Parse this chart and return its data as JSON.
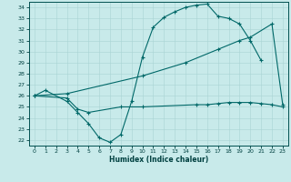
{
  "bg_color": "#c8eaea",
  "line_color": "#006868",
  "grid_color": "#a8d4d4",
  "xlabel": "Humidex (Indice chaleur)",
  "xlim": [
    -0.5,
    23.5
  ],
  "ylim": [
    21.5,
    34.5
  ],
  "xticks": [
    0,
    1,
    2,
    3,
    4,
    5,
    6,
    7,
    8,
    9,
    10,
    11,
    12,
    13,
    14,
    15,
    16,
    17,
    18,
    19,
    20,
    21,
    22,
    23
  ],
  "yticks": [
    22,
    23,
    24,
    25,
    26,
    27,
    28,
    29,
    30,
    31,
    32,
    33,
    34
  ],
  "curve1_x": [
    0,
    1,
    3,
    4,
    5,
    6,
    7,
    8,
    9,
    10,
    11,
    12,
    13,
    14,
    15,
    16,
    17,
    18,
    19,
    20,
    21
  ],
  "curve1_y": [
    26.0,
    26.5,
    25.5,
    24.5,
    23.5,
    22.2,
    21.8,
    22.5,
    25.5,
    29.5,
    32.2,
    33.1,
    33.6,
    34.0,
    34.2,
    34.3,
    33.2,
    33.0,
    32.5,
    31.0,
    29.2
  ],
  "curve2_x": [
    0,
    3,
    10,
    14,
    17,
    19,
    20,
    22,
    23
  ],
  "curve2_y": [
    26.0,
    26.2,
    27.8,
    29.0,
    30.2,
    31.0,
    31.3,
    32.5,
    25.2
  ],
  "curve3_x": [
    0,
    3,
    4,
    5,
    8,
    10,
    15,
    16,
    17,
    18,
    19,
    20,
    21,
    22,
    23
  ],
  "curve3_y": [
    26.0,
    25.8,
    24.8,
    24.5,
    25.0,
    25.0,
    25.2,
    25.2,
    25.3,
    25.4,
    25.4,
    25.4,
    25.3,
    25.2,
    25.0
  ]
}
